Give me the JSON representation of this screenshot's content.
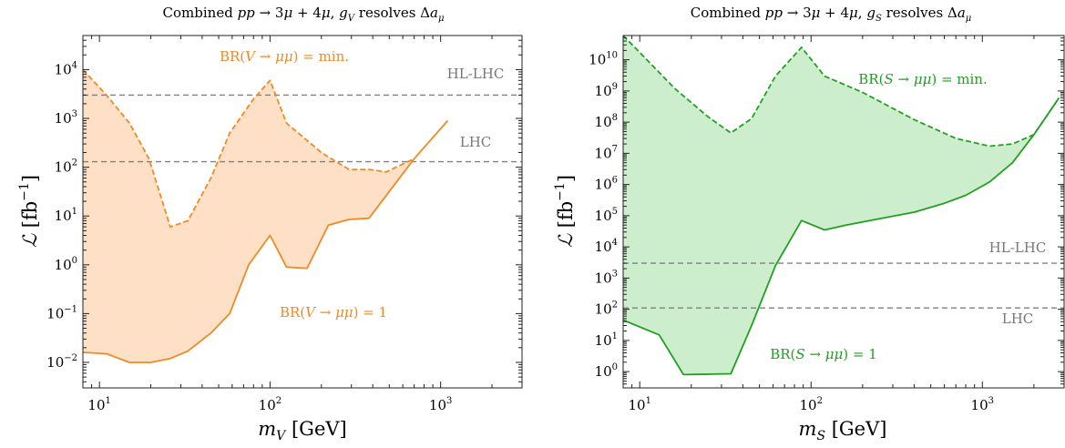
{
  "chart_data": [
    {
      "type": "area",
      "title": "Combined pp → 3μ + 4μ,  g_V resolves Δa_μ",
      "xlabel": "m_V [GeV]",
      "ylabel": "ℒ [fb⁻¹]",
      "xscale": "log",
      "yscale": "log",
      "xlim": [
        8,
        3000
      ],
      "ylim": [
        0.003,
        50000
      ],
      "grid": false,
      "color": "#f08a24",
      "fill_color": "#fde0c5",
      "x_ticks": [
        {
          "value": 10,
          "base": "10",
          "exp": "1"
        },
        {
          "value": 100,
          "base": "10",
          "exp": "2"
        },
        {
          "value": 1000,
          "base": "10",
          "exp": "3"
        }
      ],
      "y_ticks": [
        {
          "value": 0.01,
          "base": "10",
          "exp": "−2"
        },
        {
          "value": 0.1,
          "base": "10",
          "exp": "−1"
        },
        {
          "value": 1,
          "base": "10",
          "exp": "0"
        },
        {
          "value": 10,
          "base": "10",
          "exp": "1"
        },
        {
          "value": 100,
          "base": "10",
          "exp": "2"
        },
        {
          "value": 1000,
          "base": "10",
          "exp": "3"
        },
        {
          "value": 10000,
          "base": "10",
          "exp": "4"
        }
      ],
      "series": [
        {
          "name": "BR(V → μμ) = min.",
          "dash": true,
          "x": [
            8,
            11,
            15,
            19.5,
            26,
            33,
            45,
            58,
            80,
            100,
            125,
            200,
            290,
            380,
            480,
            700
          ],
          "y": [
            10000,
            3000,
            800,
            150,
            6,
            8,
            60,
            500,
            2500,
            6000,
            800,
            200,
            90,
            90,
            80,
            150
          ]
        },
        {
          "name": "BR(V → μμ) = 1",
          "dash": false,
          "x": [
            8,
            11,
            15,
            20,
            26,
            33,
            45,
            58,
            75,
            100,
            125,
            165,
            220,
            290,
            380,
            700,
            1100
          ],
          "y": [
            0.016,
            0.015,
            0.01,
            0.01,
            0.012,
            0.017,
            0.04,
            0.1,
            1,
            4,
            0.9,
            0.85,
            6.5,
            8.5,
            9,
            150,
            900
          ]
        }
      ],
      "reference_lines": [
        {
          "label": "HL-LHC",
          "value": 3000
        },
        {
          "label": "LHC",
          "value": 130
        }
      ]
    },
    {
      "type": "area",
      "title": "Combined pp → 3μ + 4μ,  g_S resolves Δa_μ",
      "xlabel": "m_S [GeV]",
      "ylabel": "ℒ [fb⁻¹]",
      "xscale": "log",
      "yscale": "log",
      "xlim": [
        8,
        3000
      ],
      "ylim": [
        0.3,
        60000000000
      ],
      "grid": false,
      "color": "#22a022",
      "fill_color": "#cdeecd",
      "x_ticks": [
        {
          "value": 10,
          "base": "10",
          "exp": "1"
        },
        {
          "value": 100,
          "base": "10",
          "exp": "2"
        },
        {
          "value": 1000,
          "base": "10",
          "exp": "3"
        }
      ],
      "y_ticks": [
        {
          "value": 1,
          "base": "10",
          "exp": "0"
        },
        {
          "value": 10,
          "base": "10",
          "exp": "1"
        },
        {
          "value": 100,
          "base": "10",
          "exp": "2"
        },
        {
          "value": 1000,
          "base": "10",
          "exp": "3"
        },
        {
          "value": 10000,
          "base": "10",
          "exp": "4"
        },
        {
          "value": 100000,
          "base": "10",
          "exp": "5"
        },
        {
          "value": 1000000,
          "base": "10",
          "exp": "6"
        },
        {
          "value": 10000000,
          "base": "10",
          "exp": "7"
        },
        {
          "value": 100000000,
          "base": "10",
          "exp": "8"
        },
        {
          "value": 1000000000,
          "base": "10",
          "exp": "9"
        },
        {
          "value": 10000000000,
          "base": "10",
          "exp": "10"
        }
      ],
      "series": [
        {
          "name": "BR(S → μμ) = min.",
          "dash": true,
          "x": [
            8,
            11,
            16,
            25,
            34,
            45,
            62,
            88,
            120,
            200,
            400,
            700,
            1100,
            1500,
            2000,
            2800
          ],
          "y": [
            60000000000,
            10000000000,
            1200000000,
            150000000,
            45000000,
            130000000,
            3000000000,
            25000000000,
            3000000000,
            900000000,
            120000000,
            30000000,
            17000000,
            20000000,
            40000000,
            600000000
          ]
        },
        {
          "name": "BR(S → μμ) = 1",
          "dash": false,
          "x": [
            8,
            13,
            18,
            34,
            45,
            62,
            88,
            120,
            160,
            250,
            400,
            600,
            800,
            1100,
            1500,
            2000,
            2800
          ],
          "y": [
            45,
            15,
            0.8,
            0.85,
            30,
            2500,
            70000,
            35000,
            50000,
            80000,
            130000,
            250000,
            450000,
            1200000,
            5000000,
            40000000,
            600000000
          ]
        }
      ],
      "reference_lines": [
        {
          "label": "HL-LHC",
          "value": 3000
        },
        {
          "label": "LHC",
          "value": 110
        }
      ]
    }
  ]
}
